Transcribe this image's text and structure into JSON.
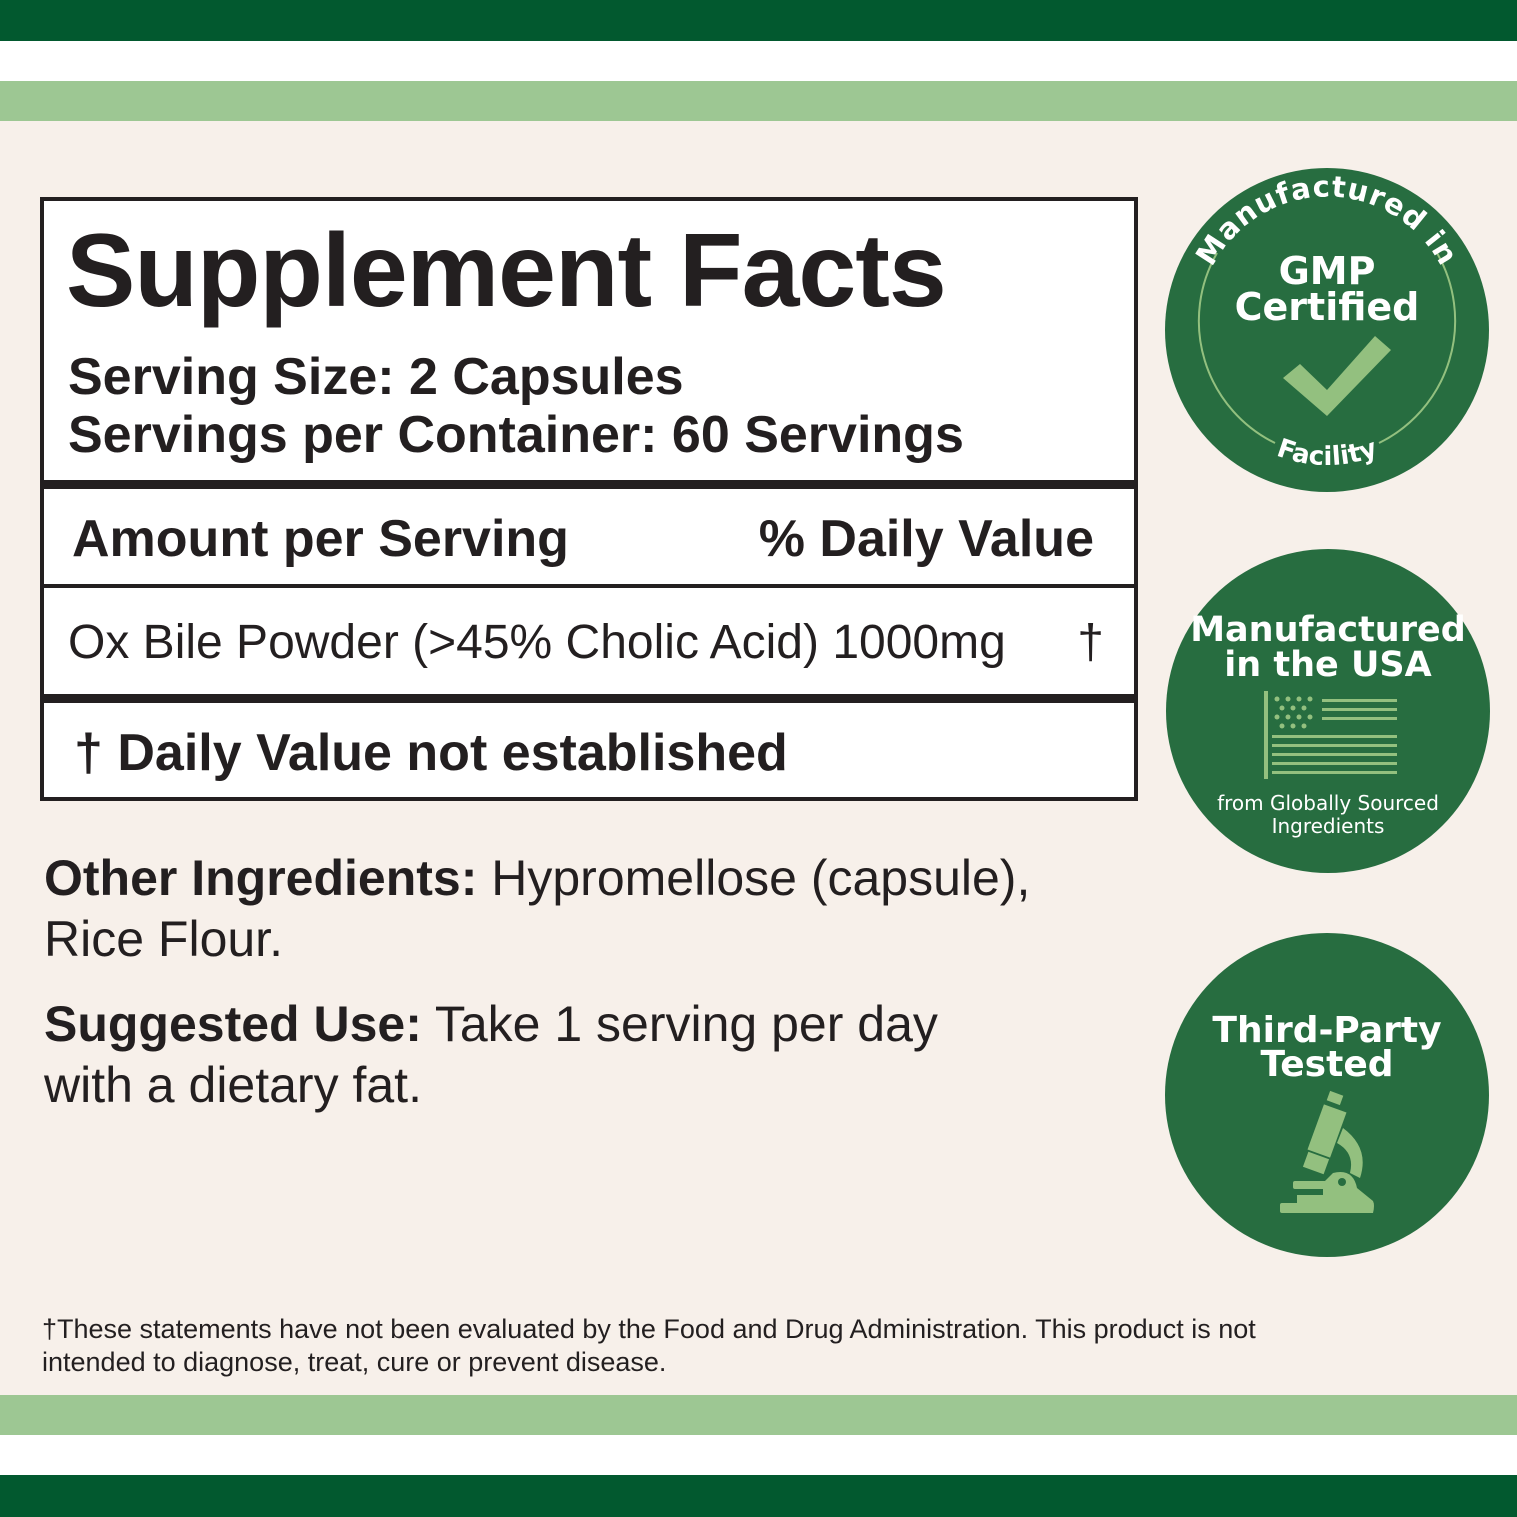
{
  "colors": {
    "dark_green": "#02592f",
    "light_green": "#9dc793",
    "background": "#f7f0ea",
    "badge_green": "#276d40",
    "badge_accent": "#93c07f"
  },
  "facts": {
    "title": "Supplement Facts",
    "serving_size": "Serving Size: 2 Capsules",
    "servings_per_container": "Servings per Container: 60 Servings",
    "header_amount": "Amount per Serving",
    "header_dv": "% Daily Value",
    "ingredient": "Ox Bile Powder (>45% Cholic Acid) 1000mg",
    "ingredient_dv": "†",
    "footnote": "† Daily Value not established"
  },
  "other_ingredients": {
    "label": "Other Ingredients:",
    "line1": " Hypromellose (capsule),",
    "line2": "Rice Flour."
  },
  "suggested_use": {
    "label": "Suggested Use:",
    "line1": " Take 1 serving per day",
    "line2": "with a dietary fat."
  },
  "disclaimer": {
    "line1": "†These statements have not been evaluated by the Food and Drug Administration. This product is not",
    "line2": "intended to diagnose, treat, cure or prevent disease."
  },
  "badges": [
    {
      "top_arc": "Manufactured in",
      "title1": "GMP",
      "title2": "Certified",
      "bottom_arc": "Facility",
      "icon": "checkmark-icon"
    },
    {
      "title1": "Manufactured",
      "title2": "in the USA",
      "sub1": "from Globally Sourced",
      "sub2": "Ingredients",
      "icon": "us-flag-icon"
    },
    {
      "title1": "Third-Party",
      "title2": "Tested",
      "icon": "microscope-icon"
    }
  ]
}
